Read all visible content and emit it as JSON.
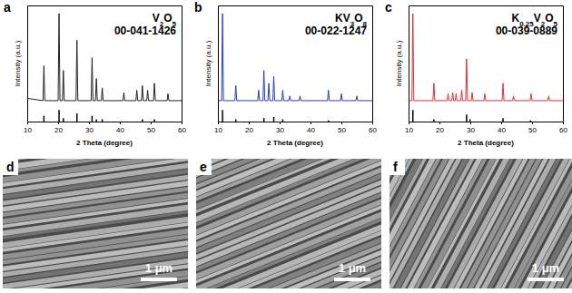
{
  "chart_data": [
    {
      "type": "line",
      "label": "a",
      "x_label": "2 Theta (degree)",
      "y_label": "Intensity (a.u.)",
      "xlim": [
        10,
        60
      ],
      "xticks": [
        10,
        20,
        30,
        40,
        50,
        60
      ],
      "ylim": [
        0,
        100
      ],
      "tick_labels": "x",
      "legend": "upper right",
      "series": [
        {
          "name": "V2O5",
          "type": "line",
          "color": "#222222",
          "x": [
            10,
            15.1,
            15.4,
            15.7,
            20.0,
            20.3,
            20.6,
            21.4,
            21.7,
            22.0,
            25.8,
            26.1,
            26.4,
            30.7,
            31.0,
            31.3,
            32.1,
            32.4,
            32.7,
            34.0,
            34.3,
            34.6,
            41.0,
            41.3,
            41.6,
            45.2,
            45.5,
            45.8,
            47.0,
            47.3,
            47.6,
            48.7,
            49.0,
            49.3,
            50.9,
            51.2,
            51.5,
            55.3,
            55.6,
            55.9,
            60
          ],
          "values": [
            20,
            18,
            48,
            18,
            18,
            93,
            18,
            18,
            44,
            18,
            18,
            70,
            18,
            18,
            55,
            18,
            18,
            37,
            18,
            18,
            29,
            18,
            18,
            25,
            18,
            18,
            27,
            18,
            18,
            31,
            18,
            18,
            27,
            18,
            18,
            33,
            18,
            18,
            24,
            18,
            18
          ]
        },
        {
          "name": "00-041-1426",
          "type": "stick",
          "color": "#000000",
          "x": [
            15.4,
            20.3,
            21.7,
            26.1,
            31.0,
            32.4,
            34.3,
            47.3,
            51.2
          ],
          "values": [
            5,
            10,
            3,
            7,
            5,
            2,
            2,
            2,
            2
          ]
        }
      ]
    },
    {
      "type": "line",
      "label": "b",
      "x_label": "2 Theta (degree)",
      "y_label": "Intensity (a.u.)",
      "xlim": [
        10,
        60
      ],
      "xticks": [
        10,
        20,
        30,
        40,
        50,
        60
      ],
      "ylim": [
        0,
        100
      ],
      "tick_labels": "x",
      "legend": "upper right",
      "series": [
        {
          "name": "KV3O8",
          "type": "line",
          "color": "#2b3fa8",
          "x": [
            10,
            11.2,
            11.5,
            11.8,
            15.5,
            15.8,
            16.1,
            22.9,
            23.2,
            23.5,
            24.6,
            24.9,
            25.2,
            26.2,
            26.5,
            26.8,
            27.8,
            28.1,
            28.4,
            30.7,
            31.0,
            31.3,
            33.0,
            33.3,
            33.6,
            36.3,
            36.6,
            36.9,
            45.5,
            45.8,
            46.1,
            49.7,
            50.0,
            50.3,
            54.7,
            55.0,
            55.3,
            60
          ],
          "values": [
            18,
            18,
            93,
            18,
            18,
            31,
            18,
            18,
            27,
            18,
            18,
            44,
            18,
            18,
            33,
            18,
            18,
            39,
            18,
            18,
            27,
            18,
            18,
            22,
            18,
            18,
            22,
            18,
            18,
            27,
            18,
            18,
            24,
            18,
            18,
            22,
            18,
            18
          ]
        },
        {
          "name": "00-022-1247",
          "type": "stick",
          "color": "#000000",
          "x": [
            11.5,
            15.8,
            24.9,
            28.1,
            31.0,
            45.8
          ],
          "values": [
            10,
            2,
            3,
            4,
            2,
            1
          ]
        }
      ]
    },
    {
      "type": "line",
      "label": "c",
      "x_label": "2 Theta (degree)",
      "y_label": "Intensity (a.u.)",
      "xlim": [
        10,
        60
      ],
      "xticks": [
        10,
        20,
        30,
        40,
        50,
        60
      ],
      "ylim": [
        0,
        100
      ],
      "tick_labels": "x",
      "legend": "upper right",
      "series": [
        {
          "name": "K0.25V2O5",
          "type": "line",
          "color": "#e03030",
          "x": [
            10,
            11.1,
            11.4,
            11.7,
            17.9,
            18.2,
            18.5,
            22.5,
            22.8,
            23.1,
            24.0,
            24.3,
            24.6,
            25.1,
            25.4,
            25.7,
            26.9,
            27.2,
            27.5,
            28.5,
            28.8,
            29.1,
            30.3,
            30.6,
            30.9,
            34.4,
            34.7,
            35.0,
            40.3,
            40.6,
            40.9,
            43.7,
            44.0,
            44.3,
            49.4,
            49.7,
            50.0,
            55.1,
            55.4,
            55.7,
            60
          ],
          "values": [
            18,
            18,
            93,
            18,
            18,
            33,
            18,
            18,
            24,
            18,
            18,
            25,
            18,
            18,
            24,
            18,
            18,
            27,
            18,
            18,
            54,
            18,
            18,
            25,
            18,
            18,
            24,
            18,
            18,
            33,
            18,
            18,
            22,
            18,
            18,
            24,
            18,
            18,
            22,
            18,
            18
          ]
        },
        {
          "name": "00-039-0889",
          "type": "stick",
          "color": "#000000",
          "x": [
            11.4,
            18.2,
            28.8,
            29.9,
            40.6,
            49.5
          ],
          "values": [
            10,
            2,
            6,
            2,
            3,
            1
          ]
        }
      ]
    }
  ],
  "images": [
    {
      "label": "d",
      "scale_bar": "1 μm"
    },
    {
      "label": "e",
      "scale_bar": "1 μm"
    },
    {
      "label": "f",
      "scale_bar": "1 μm"
    }
  ]
}
